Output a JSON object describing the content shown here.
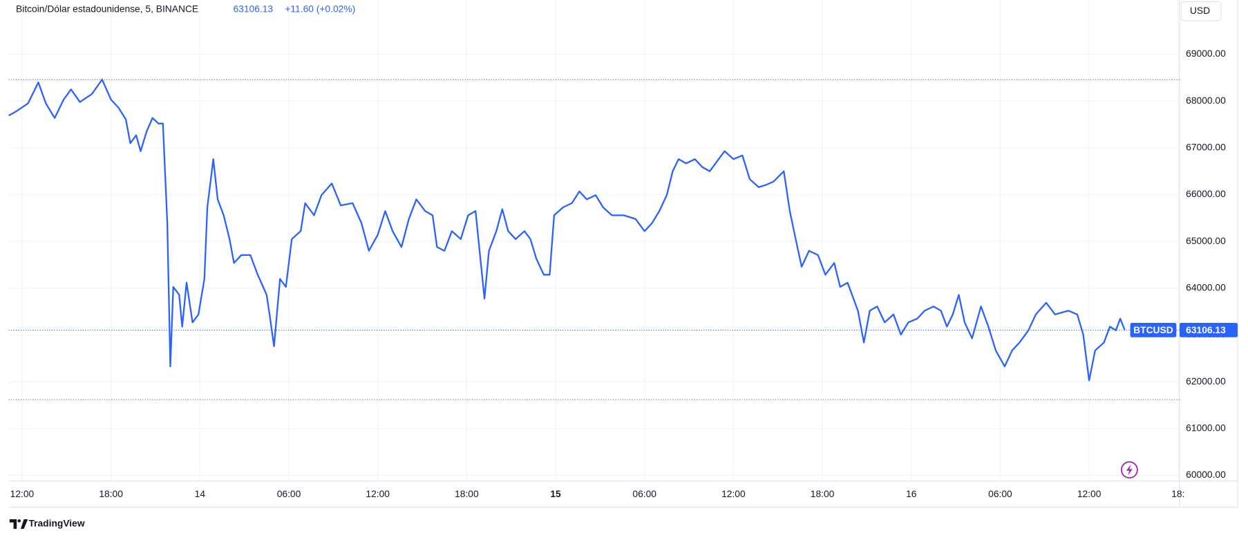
{
  "chart_data": {
    "type": "line",
    "title": "Bitcoin/Dólar estadounidense, 5, BINANCE",
    "last_price": 63106.13,
    "change": "+11.60 (+0.02%)",
    "currency": "USD",
    "brand": "TradingView",
    "range_lines": [
      68456,
      61619
    ],
    "series": [
      {
        "name": "BTCUSD",
        "color": "#2962ff",
        "x": [
          0,
          0.5,
          1.3,
          2.0,
          2.5,
          3.1,
          3.7,
          4.2,
          4.8,
          5.6,
          6.3,
          6.9,
          7.4,
          7.9,
          8.2,
          8.6,
          8.9,
          9.3,
          9.7,
          10.1,
          10.4,
          10.7,
          10.9,
          11.1,
          11.5,
          11.7,
          12.0,
          12.4,
          12.8,
          13.2,
          13.4,
          13.8,
          14.1,
          14.5,
          14.9,
          15.2,
          15.7,
          16.3,
          16.8,
          17.4,
          17.6,
          17.9,
          18.3,
          18.7,
          19.1,
          19.7,
          20.0,
          20.6,
          21.1,
          21.8,
          22.4,
          23.2,
          23.8,
          24.3,
          24.9,
          25.4,
          25.9,
          26.5,
          27.0,
          27.5,
          28.1,
          28.6,
          28.9,
          29.4,
          29.9,
          30.5,
          31.0,
          31.5,
          31.8,
          32.1,
          32.4,
          32.9,
          33.3,
          33.7,
          34.2,
          34.8,
          35.2,
          35.6,
          36.1,
          36.5,
          36.8,
          37.4,
          38.0,
          38.5,
          39.0,
          39.6,
          40.1,
          40.7,
          41.5,
          42.3,
          42.9,
          43.4,
          43.9,
          44.4,
          44.8,
          45.2,
          45.7,
          46.3,
          46.8,
          47.3,
          47.9,
          48.3,
          48.9,
          49.5,
          50.0,
          50.6,
          51.1,
          51.6,
          52.3,
          52.7,
          53.1,
          53.5,
          54.0,
          54.6,
          55.1,
          55.7,
          56.1,
          56.6,
          57.3,
          57.7,
          58.1,
          58.6,
          59.1,
          59.7,
          60.2,
          60.7,
          61.3,
          61.8,
          62.4,
          62.9,
          63.3,
          63.7,
          64.1,
          64.5,
          65.0,
          65.6,
          66.1,
          66.6,
          67.2,
          67.7,
          68.2,
          68.8,
          69.3,
          70.0,
          70.6,
          71.5,
          72.1,
          72.5,
          72.9,
          73.3,
          73.9,
          74.3,
          74.7,
          75.0,
          75.3
        ],
        "values": [
          67690,
          67780,
          67950,
          68400,
          67950,
          67640,
          68030,
          68250,
          67980,
          68150,
          68460,
          68030,
          67860,
          67610,
          67100,
          67270,
          66930,
          67350,
          67640,
          67520,
          67520,
          65390,
          62330,
          64030,
          63860,
          63180,
          64120,
          63270,
          63440,
          64200,
          65730,
          66760,
          65900,
          65560,
          65050,
          64540,
          64710,
          64710,
          64290,
          63860,
          63440,
          62760,
          64200,
          64030,
          65050,
          65220,
          65820,
          65560,
          65990,
          66240,
          65770,
          65820,
          65390,
          64800,
          65140,
          65650,
          65220,
          64880,
          65480,
          65900,
          65650,
          65560,
          64880,
          64800,
          65220,
          65050,
          65560,
          65650,
          64710,
          63780,
          64800,
          65220,
          65690,
          65220,
          65050,
          65220,
          65050,
          64630,
          64290,
          64290,
          65560,
          65730,
          65820,
          66070,
          65900,
          65990,
          65730,
          65560,
          65560,
          65480,
          65220,
          65390,
          65650,
          65990,
          66500,
          66760,
          66670,
          66760,
          66590,
          66500,
          66760,
          66930,
          66760,
          66840,
          66330,
          66160,
          66210,
          66280,
          66500,
          65650,
          65050,
          64460,
          64800,
          64710,
          64290,
          64540,
          64030,
          64120,
          63520,
          62840,
          63520,
          63610,
          63270,
          63440,
          63010,
          63270,
          63350,
          63520,
          63610,
          63520,
          63180,
          63440,
          63860,
          63270,
          62930,
          63610,
          63180,
          62670,
          62330,
          62670,
          62840,
          63100,
          63440,
          63690,
          63440,
          63520,
          63440,
          63010,
          62030,
          62670,
          62840,
          63180,
          63100,
          63350,
          63106.13
        ]
      }
    ],
    "xlim": [
      0,
      79
    ],
    "xticks": [
      {
        "value": 0.9,
        "label": "12:00"
      },
      {
        "value": 6.9,
        "label": "18:00"
      },
      {
        "value": 12.9,
        "label": "14"
      },
      {
        "value": 18.9,
        "label": "06:00"
      },
      {
        "value": 24.9,
        "label": "12:00"
      },
      {
        "value": 30.9,
        "label": "18:00"
      },
      {
        "value": 36.9,
        "label": "15"
      },
      {
        "value": 42.9,
        "label": "06:00"
      },
      {
        "value": 48.9,
        "label": "12:00"
      },
      {
        "value": 54.9,
        "label": "18:00"
      },
      {
        "value": 60.9,
        "label": "16"
      },
      {
        "value": 66.9,
        "label": "06:00"
      },
      {
        "value": 72.9,
        "label": "12:00"
      },
      {
        "value": 78.9,
        "label": "18:"
      }
    ],
    "ylim": [
      59880,
      70160
    ],
    "yticks": [
      {
        "value": 60000,
        "label": "60000.00"
      },
      {
        "value": 61000,
        "label": "61000.00"
      },
      {
        "value": 62000,
        "label": "62000.00"
      },
      {
        "value": 63000,
        "label": "63000.00"
      },
      {
        "value": 64000,
        "label": "64000.00"
      },
      {
        "value": 65000,
        "label": "65000.00"
      },
      {
        "value": 66000,
        "label": "66000.00"
      },
      {
        "value": 67000,
        "label": "67000.00"
      },
      {
        "value": 68000,
        "label": "68000.00"
      },
      {
        "value": 69000,
        "label": "69000.00"
      }
    ],
    "grid": true
  }
}
